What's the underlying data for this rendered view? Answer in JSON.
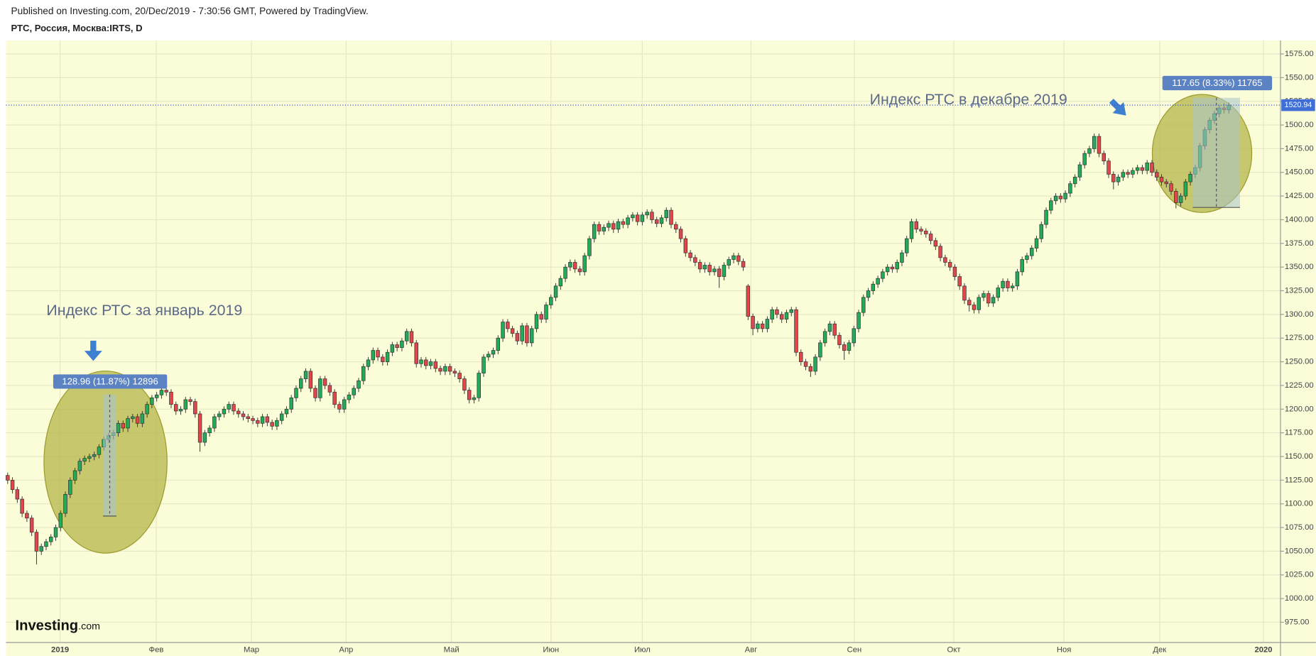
{
  "chart_data": {
    "type": "candlestick",
    "subtitle": "Published on Investing.com, 20/Dec/2019 - 7:30:56 GMT, Powered by TradingView.",
    "title": "РТС, Россия, Москва:IRTS, D",
    "up_color": "#22ab58",
    "down_color": "#e0474c",
    "background": "#fbfcd8",
    "open": [
      1130,
      1125,
      1115,
      1105,
      1090,
      1085,
      1070,
      1050,
      1055,
      1060,
      1065,
      1075,
      1090,
      1110,
      1125,
      1135,
      1145,
      1148,
      1150,
      1152,
      1160,
      1168,
      1172,
      1175,
      1185,
      1180,
      1190,
      1192,
      1185,
      1195,
      1205,
      1212,
      1215,
      1220,
      1218,
      1205,
      1198,
      1200,
      1210,
      1208,
      1195,
      1165,
      1175,
      1180,
      1192,
      1195,
      1200,
      1205,
      1198,
      1195,
      1192,
      1190,
      1188,
      1185,
      1192,
      1186,
      1182,
      1188,
      1195,
      1200,
      1212,
      1222,
      1232,
      1240,
      1222,
      1212,
      1232,
      1225,
      1218,
      1205,
      1200,
      1210,
      1215,
      1222,
      1230,
      1245,
      1252,
      1262,
      1255,
      1250,
      1260,
      1268,
      1265,
      1272,
      1282,
      1270,
      1248,
      1252,
      1246,
      1250,
      1243,
      1240,
      1245,
      1240,
      1238,
      1232,
      1220,
      1210,
      1212,
      1238,
      1255,
      1258,
      1262,
      1275,
      1292,
      1285,
      1280,
      1272,
      1288,
      1270,
      1285,
      1300,
      1295,
      1310,
      1318,
      1330,
      1338,
      1350,
      1355,
      1348,
      1345,
      1362,
      1380,
      1395,
      1388,
      1392,
      1396,
      1390,
      1398,
      1395,
      1402,
      1405,
      1398,
      1405,
      1408,
      1400,
      1396,
      1402,
      1410,
      1395,
      1390,
      1380,
      1365,
      1360,
      1355,
      1348,
      1352,
      1345,
      1348,
      1340,
      1352,
      1358,
      1362,
      1356,
      1330,
      1298,
      1285,
      1290,
      1285,
      1295,
      1305,
      1300,
      1295,
      1302,
      1305,
      1260,
      1250,
      1245,
      1240,
      1255,
      1270,
      1282,
      1290,
      1278,
      1268,
      1262,
      1270,
      1285,
      1302,
      1318,
      1325,
      1332,
      1338,
      1345,
      1350,
      1348,
      1355,
      1365,
      1380,
      1398,
      1390,
      1388,
      1385,
      1378,
      1372,
      1360,
      1355,
      1350,
      1340,
      1330,
      1315,
      1310,
      1305,
      1318,
      1322,
      1312,
      1318,
      1328,
      1335,
      1328,
      1330,
      1345,
      1358,
      1362,
      1370,
      1380,
      1395,
      1410,
      1420,
      1425,
      1422,
      1428,
      1438,
      1445,
      1458,
      1470,
      1475,
      1488,
      1470,
      1462,
      1448,
      1440,
      1445,
      1450,
      1448,
      1452,
      1455,
      1452,
      1460,
      1450,
      1445,
      1440,
      1438,
      1430,
      1418,
      1425,
      1440,
      1448,
      1455,
      1478,
      1495,
      1505,
      1512,
      1518,
      1516
    ],
    "high": [
      1133,
      1128,
      1118,
      1108,
      1093,
      1088,
      1073,
      1058,
      1063,
      1068,
      1078,
      1093,
      1113,
      1128,
      1138,
      1148,
      1151,
      1153,
      1155,
      1163,
      1171,
      1175,
      1178,
      1188,
      1188,
      1193,
      1195,
      1195,
      1198,
      1208,
      1215,
      1218,
      1223,
      1223,
      1221,
      1208,
      1203,
      1213,
      1213,
      1211,
      1198,
      1178,
      1183,
      1195,
      1198,
      1203,
      1208,
      1208,
      1201,
      1198,
      1195,
      1193,
      1191,
      1195,
      1195,
      1189,
      1191,
      1198,
      1203,
      1215,
      1225,
      1235,
      1243,
      1243,
      1225,
      1235,
      1235,
      1228,
      1221,
      1208,
      1213,
      1218,
      1225,
      1233,
      1248,
      1255,
      1265,
      1265,
      1258,
      1263,
      1271,
      1271,
      1275,
      1285,
      1285,
      1273,
      1255,
      1255,
      1253,
      1253,
      1246,
      1248,
      1248,
      1243,
      1241,
      1235,
      1223,
      1215,
      1241,
      1258,
      1261,
      1265,
      1278,
      1295,
      1295,
      1288,
      1283,
      1291,
      1291,
      1288,
      1303,
      1303,
      1313,
      1321,
      1333,
      1341,
      1353,
      1358,
      1358,
      1351,
      1365,
      1383,
      1398,
      1398,
      1395,
      1399,
      1399,
      1401,
      1401,
      1405,
      1408,
      1408,
      1408,
      1411,
      1411,
      1403,
      1405,
      1413,
      1413,
      1398,
      1393,
      1383,
      1368,
      1363,
      1358,
      1355,
      1355,
      1351,
      1351,
      1355,
      1361,
      1365,
      1365,
      1359,
      1332,
      1301,
      1293,
      1293,
      1298,
      1308,
      1308,
      1303,
      1305,
      1308,
      1308,
      1263,
      1253,
      1248,
      1258,
      1273,
      1285,
      1293,
      1293,
      1281,
      1271,
      1273,
      1288,
      1305,
      1321,
      1328,
      1335,
      1341,
      1348,
      1353,
      1353,
      1358,
      1368,
      1383,
      1401,
      1401,
      1393,
      1391,
      1388,
      1381,
      1375,
      1363,
      1358,
      1353,
      1343,
      1333,
      1318,
      1313,
      1321,
      1325,
      1325,
      1321,
      1331,
      1338,
      1338,
      1333,
      1348,
      1361,
      1365,
      1373,
      1383,
      1398,
      1413,
      1423,
      1428,
      1428,
      1431,
      1441,
      1448,
      1461,
      1473,
      1478,
      1491,
      1491,
      1473,
      1465,
      1451,
      1448,
      1453,
      1453,
      1455,
      1458,
      1458,
      1463,
      1463,
      1453,
      1448,
      1443,
      1441,
      1433,
      1428,
      1443,
      1451,
      1458,
      1481,
      1498,
      1508,
      1515,
      1521,
      1523,
      1524
    ],
    "low": [
      1121,
      1111,
      1101,
      1086,
      1081,
      1066,
      1036,
      1046,
      1051,
      1056,
      1061,
      1071,
      1086,
      1106,
      1121,
      1131,
      1141,
      1144,
      1146,
      1148,
      1156,
      1164,
      1168,
      1171,
      1176,
      1176,
      1186,
      1181,
      1181,
      1191,
      1201,
      1208,
      1211,
      1214,
      1201,
      1194,
      1194,
      1196,
      1204,
      1191,
      1155,
      1161,
      1171,
      1176,
      1188,
      1191,
      1196,
      1194,
      1191,
      1188,
      1186,
      1184,
      1181,
      1181,
      1182,
      1178,
      1178,
      1184,
      1191,
      1196,
      1208,
      1218,
      1228,
      1218,
      1208,
      1208,
      1221,
      1214,
      1201,
      1196,
      1196,
      1206,
      1211,
      1218,
      1226,
      1241,
      1248,
      1251,
      1246,
      1246,
      1256,
      1261,
      1261,
      1268,
      1266,
      1244,
      1244,
      1242,
      1242,
      1239,
      1236,
      1236,
      1236,
      1234,
      1228,
      1216,
      1206,
      1206,
      1208,
      1234,
      1251,
      1254,
      1258,
      1271,
      1281,
      1276,
      1268,
      1268,
      1266,
      1266,
      1281,
      1291,
      1291,
      1306,
      1314,
      1326,
      1334,
      1346,
      1344,
      1341,
      1341,
      1358,
      1376,
      1384,
      1384,
      1388,
      1386,
      1386,
      1391,
      1391,
      1398,
      1394,
      1394,
      1401,
      1396,
      1392,
      1392,
      1398,
      1391,
      1386,
      1376,
      1361,
      1356,
      1351,
      1344,
      1344,
      1341,
      1341,
      1328,
      1336,
      1348,
      1354,
      1352,
      1346,
      1294,
      1278,
      1281,
      1281,
      1281,
      1291,
      1296,
      1291,
      1291,
      1298,
      1256,
      1246,
      1241,
      1234,
      1236,
      1251,
      1266,
      1278,
      1274,
      1264,
      1252,
      1258,
      1266,
      1281,
      1298,
      1314,
      1321,
      1328,
      1334,
      1341,
      1344,
      1344,
      1351,
      1361,
      1376,
      1386,
      1384,
      1381,
      1374,
      1368,
      1356,
      1351,
      1346,
      1336,
      1326,
      1311,
      1303,
      1301,
      1301,
      1314,
      1308,
      1308,
      1314,
      1324,
      1324,
      1324,
      1326,
      1341,
      1354,
      1358,
      1366,
      1376,
      1391,
      1406,
      1416,
      1418,
      1418,
      1424,
      1434,
      1441,
      1454,
      1466,
      1471,
      1466,
      1458,
      1444,
      1432,
      1436,
      1441,
      1444,
      1444,
      1448,
      1448,
      1448,
      1446,
      1441,
      1436,
      1434,
      1426,
      1412,
      1414,
      1421,
      1436,
      1444,
      1451,
      1474,
      1491,
      1501,
      1508,
      1512,
      1512
    ],
    "close": [
      1125,
      1115,
      1105,
      1090,
      1085,
      1070,
      1050,
      1055,
      1060,
      1065,
      1075,
      1090,
      1110,
      1125,
      1135,
      1145,
      1148,
      1150,
      1152,
      1160,
      1168,
      1172,
      1175,
      1185,
      1180,
      1190,
      1192,
      1185,
      1195,
      1205,
      1212,
      1215,
      1220,
      1218,
      1205,
      1198,
      1200,
      1210,
      1208,
      1195,
      1165,
      1175,
      1180,
      1192,
      1195,
      1200,
      1205,
      1198,
      1195,
      1192,
      1190,
      1188,
      1185,
      1192,
      1186,
      1182,
      1188,
      1195,
      1200,
      1212,
      1222,
      1232,
      1240,
      1222,
      1212,
      1232,
      1225,
      1218,
      1205,
      1200,
      1210,
      1215,
      1222,
      1230,
      1245,
      1252,
      1262,
      1255,
      1250,
      1260,
      1268,
      1265,
      1272,
      1282,
      1270,
      1248,
      1252,
      1246,
      1250,
      1243,
      1240,
      1245,
      1240,
      1238,
      1232,
      1220,
      1210,
      1212,
      1238,
      1255,
      1258,
      1262,
      1275,
      1292,
      1285,
      1280,
      1272,
      1288,
      1270,
      1285,
      1300,
      1295,
      1310,
      1318,
      1330,
      1338,
      1350,
      1355,
      1348,
      1345,
      1362,
      1380,
      1395,
      1388,
      1392,
      1396,
      1390,
      1398,
      1395,
      1402,
      1405,
      1398,
      1405,
      1408,
      1400,
      1396,
      1402,
      1410,
      1395,
      1390,
      1380,
      1365,
      1360,
      1355,
      1348,
      1352,
      1345,
      1348,
      1340,
      1352,
      1358,
      1362,
      1356,
      1350,
      1298,
      1285,
      1290,
      1285,
      1295,
      1305,
      1300,
      1295,
      1302,
      1305,
      1260,
      1250,
      1245,
      1240,
      1255,
      1270,
      1282,
      1290,
      1278,
      1268,
      1262,
      1270,
      1285,
      1302,
      1318,
      1325,
      1332,
      1338,
      1345,
      1350,
      1348,
      1355,
      1365,
      1380,
      1398,
      1390,
      1388,
      1385,
      1378,
      1372,
      1360,
      1355,
      1350,
      1340,
      1330,
      1315,
      1310,
      1305,
      1318,
      1322,
      1312,
      1318,
      1328,
      1335,
      1328,
      1330,
      1345,
      1358,
      1362,
      1370,
      1380,
      1395,
      1410,
      1420,
      1425,
      1422,
      1428,
      1438,
      1445,
      1458,
      1470,
      1475,
      1488,
      1470,
      1462,
      1448,
      1440,
      1445,
      1450,
      1448,
      1452,
      1455,
      1452,
      1460,
      1450,
      1445,
      1440,
      1438,
      1430,
      1418,
      1425,
      1440,
      1448,
      1455,
      1478,
      1495,
      1505,
      1512,
      1518,
      1516,
      1520.94
    ],
    "xlim": [
      -0.35,
      264.74
    ],
    "xticks": [
      {
        "value": 10.9,
        "label": "2019"
      },
      {
        "value": 30.9,
        "label": "Фев"
      },
      {
        "value": 50.7,
        "label": "Мар"
      },
      {
        "value": 70.4,
        "label": "Апр"
      },
      {
        "value": 92.3,
        "label": "Май"
      },
      {
        "value": 113,
        "label": "Июн"
      },
      {
        "value": 132,
        "label": "Июл"
      },
      {
        "value": 154.6,
        "label": "Авг"
      },
      {
        "value": 176.1,
        "label": "Сен"
      },
      {
        "value": 196.8,
        "label": "Окт"
      },
      {
        "value": 219.7,
        "label": "Ноя"
      },
      {
        "value": 239.6,
        "label": "Дек"
      },
      {
        "value": 261.2,
        "label": "2020"
      }
    ],
    "ylim": [
      953.6,
      1589.24
    ],
    "yticks": [
      {
        "value": 975,
        "label": "975.00"
      },
      {
        "value": 1000,
        "label": "1000.00"
      },
      {
        "value": 1025,
        "label": "1025.00"
      },
      {
        "value": 1050,
        "label": "1050.00"
      },
      {
        "value": 1075,
        "label": "1075.00"
      },
      {
        "value": 1100,
        "label": "1100.00"
      },
      {
        "value": 1125,
        "label": "1125.00"
      },
      {
        "value": 1150,
        "label": "1150.00"
      },
      {
        "value": 1175,
        "label": "1175.00"
      },
      {
        "value": 1200,
        "label": "1200.00"
      },
      {
        "value": 1225,
        "label": "1225.00"
      },
      {
        "value": 1250,
        "label": "1250.00"
      },
      {
        "value": 1275,
        "label": "1275.00"
      },
      {
        "value": 1300,
        "label": "1300.00"
      },
      {
        "value": 1325,
        "label": "1325.00"
      },
      {
        "value": 1350,
        "label": "1350.00"
      },
      {
        "value": 1375,
        "label": "1375.00"
      },
      {
        "value": 1400,
        "label": "1400.00"
      },
      {
        "value": 1425,
        "label": "1425.00"
      },
      {
        "value": 1450,
        "label": "1450.00"
      },
      {
        "value": 1475,
        "label": "1475.00"
      },
      {
        "value": 1500,
        "label": "1500.00"
      },
      {
        "value": 1525,
        "label": "1525.00"
      },
      {
        "value": 1550,
        "label": "1550.00"
      },
      {
        "value": 1575,
        "label": "1575.00"
      }
    ],
    "grid": true,
    "annotations": [
      "Индекс РТС за январь 2019",
      "Индекс РТС в декабре 2019"
    ],
    "measures": [
      "128.96 (11.87%) 12896",
      "117.65 (8.33%) 11765"
    ],
    "logo": [
      "Investing",
      ".com"
    ]
  }
}
